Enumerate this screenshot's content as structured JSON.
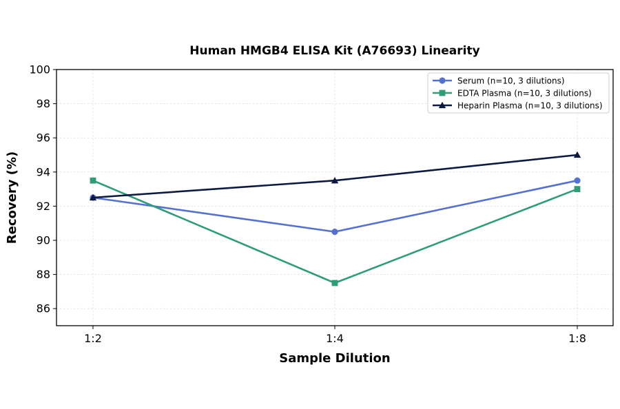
{
  "chart_data": {
    "type": "line",
    "title": "Human HMGB4 ELISA Kit (A76693) Linearity",
    "xlabel": "Sample Dilution",
    "ylabel": "Recovery (%)",
    "categories": [
      "1:2",
      "1:4",
      "1:8"
    ],
    "ylim": [
      85,
      100
    ],
    "yticks": [
      86,
      88,
      90,
      92,
      94,
      96,
      98,
      100
    ],
    "grid": true,
    "legend_position": "top-right",
    "series": [
      {
        "name": "Serum (n=10, 3 dilutions)",
        "values": [
          92.5,
          90.5,
          93.5
        ],
        "color": "#5470d1",
        "marker": "circle"
      },
      {
        "name": "EDTA Plasma (n=10, 3 dilutions)",
        "values": [
          93.5,
          87.5,
          93.0
        ],
        "color": "#2e9c78",
        "marker": "square"
      },
      {
        "name": "Heparin Plasma (n=10, 3 dilutions)",
        "values": [
          92.5,
          93.5,
          95.0
        ],
        "color": "#0c1a40",
        "marker": "triangle"
      }
    ]
  }
}
